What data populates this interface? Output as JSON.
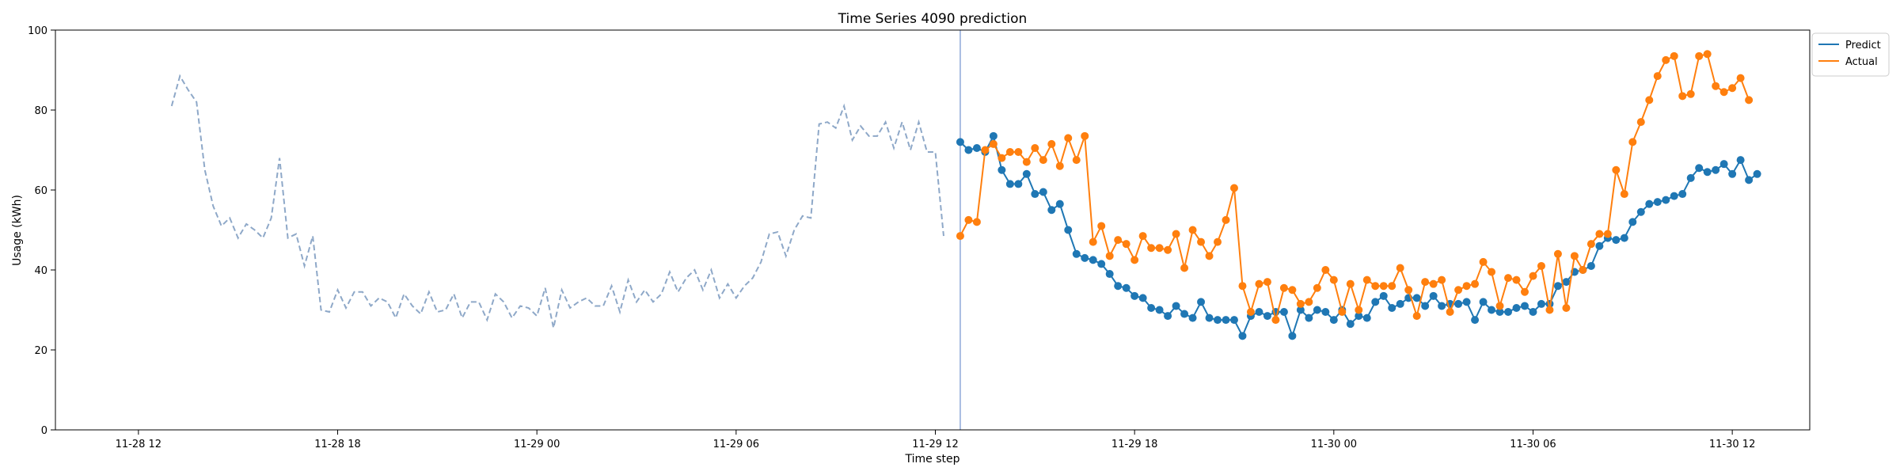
{
  "chart_data": {
    "type": "line",
    "title": "Time Series 4090 prediction",
    "xlabel": "Time step",
    "ylabel": "Usage (kWh)",
    "ylim": [
      0,
      100
    ],
    "xlim": [
      "2023-11-28 09:30",
      "2023-11-30 14:20"
    ],
    "x_unit": "15-minute intervals",
    "yticks": [
      0,
      20,
      40,
      60,
      80,
      100
    ],
    "xticks": [
      "11-28 12",
      "11-28 18",
      "11-29 00",
      "11-29 06",
      "11-29 12",
      "11-29 18",
      "11-30 00",
      "11-30 06",
      "11-30 12"
    ],
    "xtick_times": [
      "2023-11-28 12:00",
      "2023-11-28 18:00",
      "2023-11-29 00:00",
      "2023-11-29 06:00",
      "2023-11-29 12:00",
      "2023-11-29 18:00",
      "2023-11-30 00:00",
      "2023-11-30 06:00",
      "2023-11-30 12:00"
    ],
    "grid": false,
    "legend_position": "top-right",
    "forecast_start": "2023-11-29 12:45",
    "history": {
      "start": "2023-11-28 13:00",
      "step_minutes": 15,
      "style": "dashed",
      "color": "#8ea8c8",
      "values": [
        81,
        88.5,
        85,
        82,
        65,
        56,
        51,
        53,
        48,
        51.5,
        50,
        48,
        53,
        68,
        48,
        49,
        41,
        48.5,
        30,
        29.5,
        35,
        30.5,
        34.5,
        34.5,
        31,
        33,
        32,
        28,
        34,
        31,
        29,
        34.5,
        29.5,
        30,
        34,
        28,
        32,
        32,
        27.5,
        34,
        32,
        28,
        31,
        30.5,
        28.5,
        35.5,
        25.5,
        35,
        30.5,
        32,
        33,
        31,
        31,
        36,
        29.5,
        37.5,
        32,
        35,
        32,
        34,
        39.5,
        34.5,
        38,
        40,
        35,
        40,
        33,
        36.5,
        33,
        36,
        38,
        42,
        49,
        49.5,
        43.5,
        50,
        53.5,
        53,
        76.5,
        77,
        75.5,
        81,
        72.5,
        76,
        73.5,
        73.5,
        77,
        70.5,
        77,
        70,
        77,
        69.5,
        69.5,
        48.5
      ]
    },
    "series": [
      {
        "name": "Predict",
        "color": "#1f77b4",
        "start": "2023-11-29 12:45",
        "step_minutes": 15,
        "values": [
          72,
          70,
          70.5,
          69.5,
          73.5,
          65,
          61.5,
          61.5,
          64,
          59,
          59.5,
          55,
          56.5,
          50,
          44,
          43,
          42.5,
          41.5,
          39,
          36,
          35.5,
          33.5,
          33,
          30.5,
          30,
          28.5,
          31,
          29,
          28,
          32,
          28,
          27.5,
          27.5,
          27.5,
          23.5,
          28.5,
          29.5,
          28.5,
          29.5,
          29.5,
          23.5,
          30,
          28,
          30,
          29.5,
          27.5,
          30,
          26.5,
          28.5,
          28,
          32,
          33.5,
          30.5,
          31.5,
          33,
          33,
          31,
          33.5,
          31,
          31.5,
          31.5,
          32,
          27.5,
          32,
          30,
          29.5,
          29.5,
          30.5,
          31,
          29.5,
          31.5,
          31.5,
          36,
          37,
          39.5,
          40,
          41,
          46,
          48,
          47.5,
          48,
          52,
          54.5,
          56.5,
          57,
          57.5,
          58.5,
          59,
          63,
          65.5,
          64.5,
          65,
          66.5,
          64,
          67.5,
          62.5,
          64
        ]
      },
      {
        "name": "Actual",
        "color": "#ff7f0e",
        "start": "2023-11-29 12:45",
        "step_minutes": 15,
        "values": [
          48.5,
          52.5,
          52,
          70,
          71.5,
          68,
          69.5,
          69.5,
          67,
          70.5,
          67.5,
          71.5,
          66,
          73,
          67.5,
          73.5,
          47,
          51,
          43.5,
          47.5,
          46.5,
          42.5,
          48.5,
          45.5,
          45.5,
          45,
          49,
          40.5,
          50,
          47,
          43.5,
          47,
          52.5,
          60.5,
          36,
          29.5,
          36.5,
          37,
          27.5,
          35.5,
          35,
          31.5,
          32,
          35.5,
          40,
          37.5,
          29.5,
          36.5,
          30,
          37.5,
          36,
          36,
          36,
          40.5,
          35,
          28.5,
          37,
          36.5,
          37.5,
          29.5,
          35,
          36,
          36.5,
          42,
          39.5,
          31,
          38,
          37.5,
          34.5,
          38.5,
          41,
          30,
          44,
          30.5,
          43.5,
          40,
          46.5,
          49,
          49,
          65,
          59,
          72,
          77,
          82.5,
          88.5,
          92.5,
          93.5,
          83.5,
          84,
          93.5,
          94,
          86,
          84.5,
          85.5,
          88,
          82.5
        ]
      }
    ]
  }
}
